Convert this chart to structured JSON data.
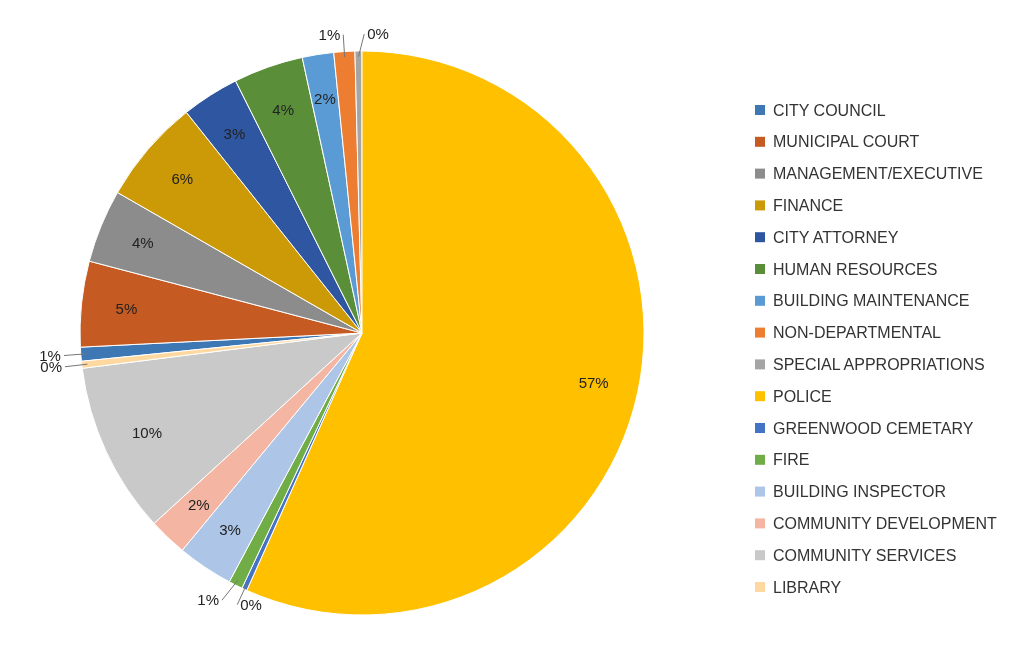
{
  "chart_data": {
    "type": "pie",
    "categories": [
      "CITY COUNCIL",
      "MUNICIPAL COURT",
      "MANAGEMENT/EXECUTIVE",
      "FINANCE",
      "CITY ATTORNEY",
      "HUMAN RESOURCES",
      "BUILDING MAINTENANCE",
      "NON-DEPARTMENTAL",
      "SPECIAL APPROPRIATIONS",
      "POLICE",
      "GREENWOOD CEMETARY",
      "FIRE",
      "BUILDING INSPECTOR",
      "COMMUNITY DEVELOPMENT",
      "COMMUNITY SERVICES",
      "LIBRARY"
    ],
    "values": [
      0.8,
      4.9,
      4.2,
      6.0,
      3.3,
      4.0,
      1.8,
      1.2,
      0.4,
      56.7,
      0.3,
      0.8,
      3.2,
      2.2,
      9.8,
      0.4
    ],
    "value_labels": [
      "1%",
      "5%",
      "4%",
      "6%",
      "3%",
      "4%",
      "2%",
      "1%",
      "0%",
      "57%",
      "0%",
      "1%",
      "3%",
      "2%",
      "10%",
      "0%"
    ],
    "colors": [
      "#3d78b5",
      "#c55a22",
      "#8c8c8c",
      "#cc9a06",
      "#2f56a0",
      "#5a8e39",
      "#5b9bd5",
      "#ed7d31",
      "#a5a5a5",
      "#ffc000",
      "#4472c4",
      "#70ad47",
      "#adc5e7",
      "#f4b6a3",
      "#c9c9c9",
      "#ffd8a0"
    ],
    "legend": "right"
  }
}
